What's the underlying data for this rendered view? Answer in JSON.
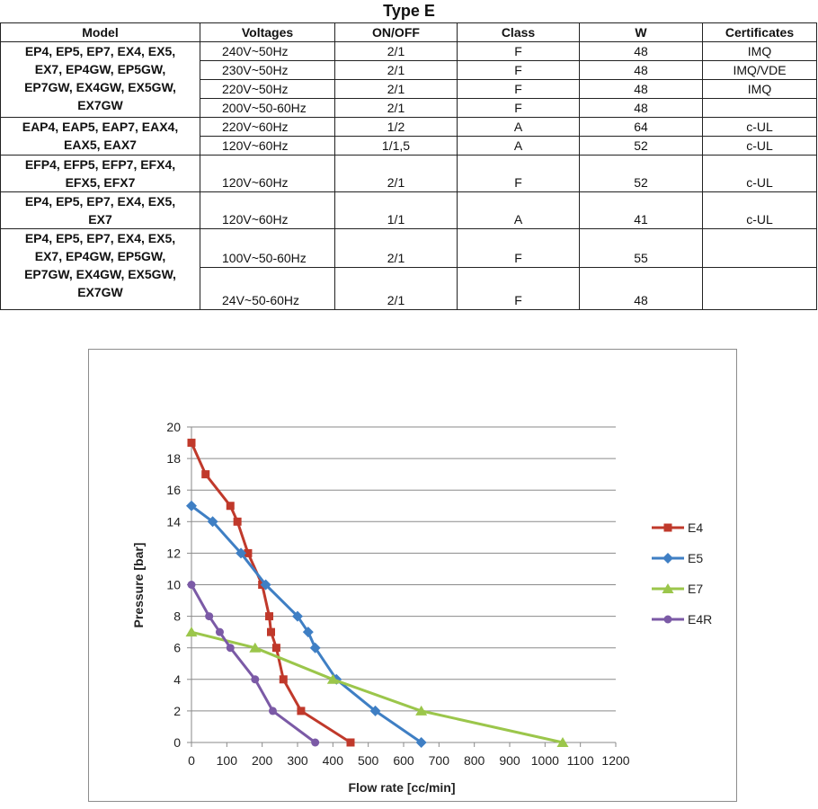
{
  "table": {
    "title": "Type E",
    "headers": [
      "Model",
      "Voltages",
      "ON/OFF",
      "Class",
      "W",
      "Certificates"
    ],
    "groups": [
      {
        "models": [
          "EP4, EP5, EP7, EX4, EX5,",
          "EX7, EP4GW, EP5GW,",
          "EP7GW, EX4GW, EX5GW,",
          "EX7GW"
        ],
        "rows": [
          {
            "voltage": "240V~50Hz",
            "onoff": "2/1",
            "class": "F",
            "w": "48",
            "cert": "IMQ"
          },
          {
            "voltage": "230V~50Hz",
            "onoff": "2/1",
            "class": "F",
            "w": "48",
            "cert": "IMQ/VDE"
          },
          {
            "voltage": "220V~50Hz",
            "onoff": "2/1",
            "class": "F",
            "w": "48",
            "cert": "IMQ"
          },
          {
            "voltage": "200V~50-60Hz",
            "onoff": "2/1",
            "class": "F",
            "w": "48",
            "cert": ""
          }
        ]
      },
      {
        "models": [
          "EAP4, EAP5, EAP7, EAX4,",
          "EAX5, EAX7"
        ],
        "rows": [
          {
            "voltage": "220V~60Hz",
            "onoff": "1/2",
            "class": "A",
            "w": "64",
            "cert": "c-UL"
          },
          {
            "voltage": "120V~60Hz",
            "onoff": "1/1,5",
            "class": "A",
            "w": "52",
            "cert": "c-UL"
          }
        ]
      },
      {
        "models": [
          "EFP4, EFP5, EFP7, EFX4,",
          "EFX5, EFX7"
        ],
        "rows": [
          {
            "voltage": "120V~60Hz",
            "onoff": "2/1",
            "class": "F",
            "w": "52",
            "cert": "c-UL"
          }
        ]
      },
      {
        "models": [
          "EP4, EP5, EP7, EX4, EX5,",
          "EX7"
        ],
        "rows": [
          {
            "voltage": "120V~60Hz",
            "onoff": "1/1",
            "class": "A",
            "w": "41",
            "cert": "c-UL"
          }
        ]
      },
      {
        "models": [
          "EP4, EP5, EP7, EX4, EX5,",
          "EX7, EP4GW, EP5GW,",
          "EP7GW, EX4GW, EX5GW,",
          "EX7GW"
        ],
        "rows": [
          {
            "voltage": "100V~50-60Hz",
            "onoff": "2/1",
            "class": "F",
            "w": "55",
            "cert": ""
          },
          {
            "voltage": "24V~50-60Hz",
            "onoff": "2/1",
            "class": "F",
            "w": "48",
            "cert": ""
          }
        ]
      }
    ]
  },
  "chart_data": {
    "type": "line",
    "title": "",
    "xlabel": "Flow rate [cc/min]",
    "ylabel": "Pressure [bar]",
    "xlim": [
      0,
      1200
    ],
    "ylim": [
      0,
      20
    ],
    "xticks": [
      "0",
      "100",
      "200",
      "300",
      "400",
      "500",
      "600",
      "700",
      "800",
      "900",
      "1000",
      "1100",
      "1200"
    ],
    "yticks": [
      "0",
      "2",
      "4",
      "6",
      "8",
      "10",
      "12",
      "14",
      "16",
      "18",
      "20"
    ],
    "grid": "horizontal",
    "legend": "right",
    "series": [
      {
        "name": "E4",
        "color": "#c0392b",
        "marker": "square",
        "points": [
          [
            0,
            19
          ],
          [
            40,
            17
          ],
          [
            110,
            15
          ],
          [
            130,
            14
          ],
          [
            160,
            12
          ],
          [
            200,
            10
          ],
          [
            220,
            8
          ],
          [
            225,
            7
          ],
          [
            240,
            6
          ],
          [
            260,
            4
          ],
          [
            310,
            2
          ],
          [
            450,
            0
          ]
        ]
      },
      {
        "name": "E5",
        "color": "#3f7fc4",
        "marker": "diamond",
        "points": [
          [
            0,
            15
          ],
          [
            60,
            14
          ],
          [
            140,
            12
          ],
          [
            210,
            10
          ],
          [
            300,
            8
          ],
          [
            330,
            7
          ],
          [
            350,
            6
          ],
          [
            410,
            4
          ],
          [
            520,
            2
          ],
          [
            650,
            0
          ]
        ]
      },
      {
        "name": "E7",
        "color": "#9bc64b",
        "marker": "triangle",
        "points": [
          [
            0,
            7
          ],
          [
            180,
            6
          ],
          [
            400,
            4
          ],
          [
            650,
            2
          ],
          [
            1050,
            0
          ]
        ]
      },
      {
        "name": "E4R",
        "color": "#7b5aa6",
        "marker": "circle",
        "points": [
          [
            0,
            10
          ],
          [
            50,
            8
          ],
          [
            80,
            7
          ],
          [
            110,
            6
          ],
          [
            180,
            4
          ],
          [
            230,
            2
          ],
          [
            350,
            0
          ]
        ]
      }
    ]
  }
}
